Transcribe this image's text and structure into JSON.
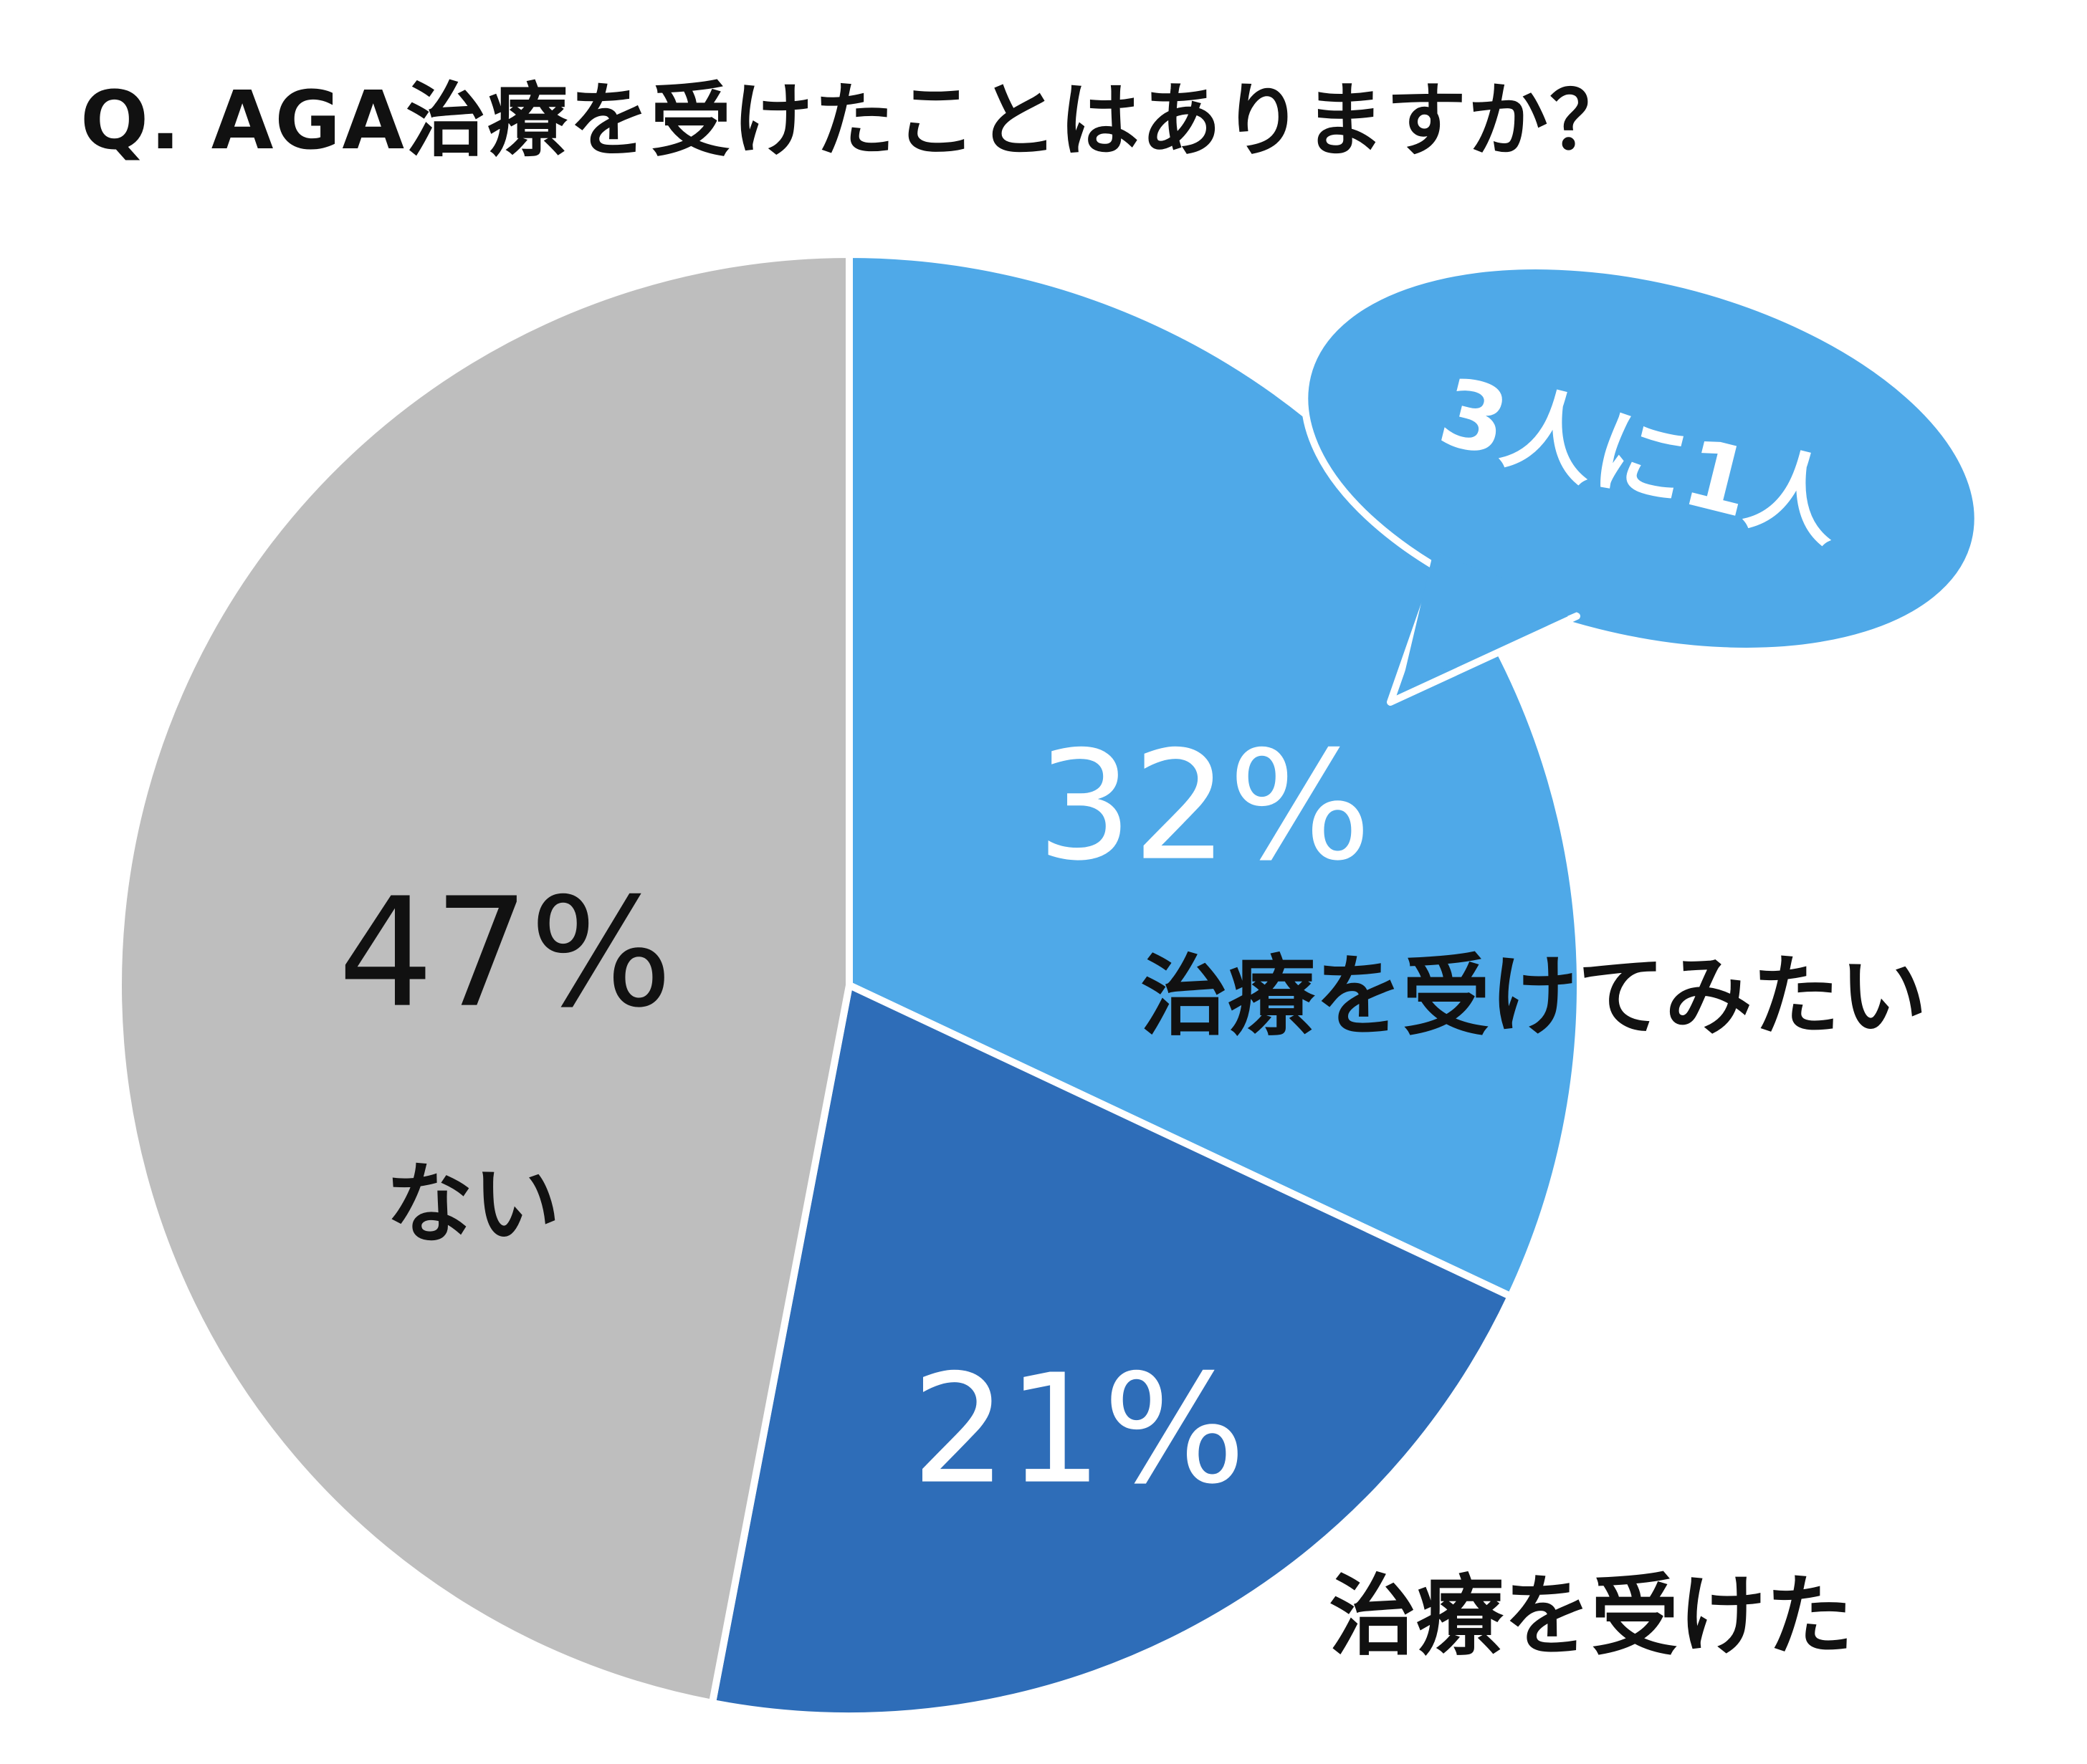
{
  "chart_data": {
    "type": "pie",
    "title": "Q. AGA治療を受けたことはありますか？",
    "slices": [
      {
        "label": "治療を受けてみたい",
        "value": 32,
        "value_label": "32%",
        "color": "#4FA9E8"
      },
      {
        "label": "治療を受けた",
        "value": 21,
        "value_label": "21%",
        "color": "#2E6DB8"
      },
      {
        "label": "ない",
        "value": 47,
        "value_label": "47%",
        "color": "#BEBEBE"
      }
    ],
    "start_angle": "12 o'clock",
    "direction": "clockwise",
    "legend": "none",
    "callout": {
      "text": "3人に1人",
      "color": "#4FA9E8",
      "points_to": "治療を受けてみたい"
    }
  }
}
